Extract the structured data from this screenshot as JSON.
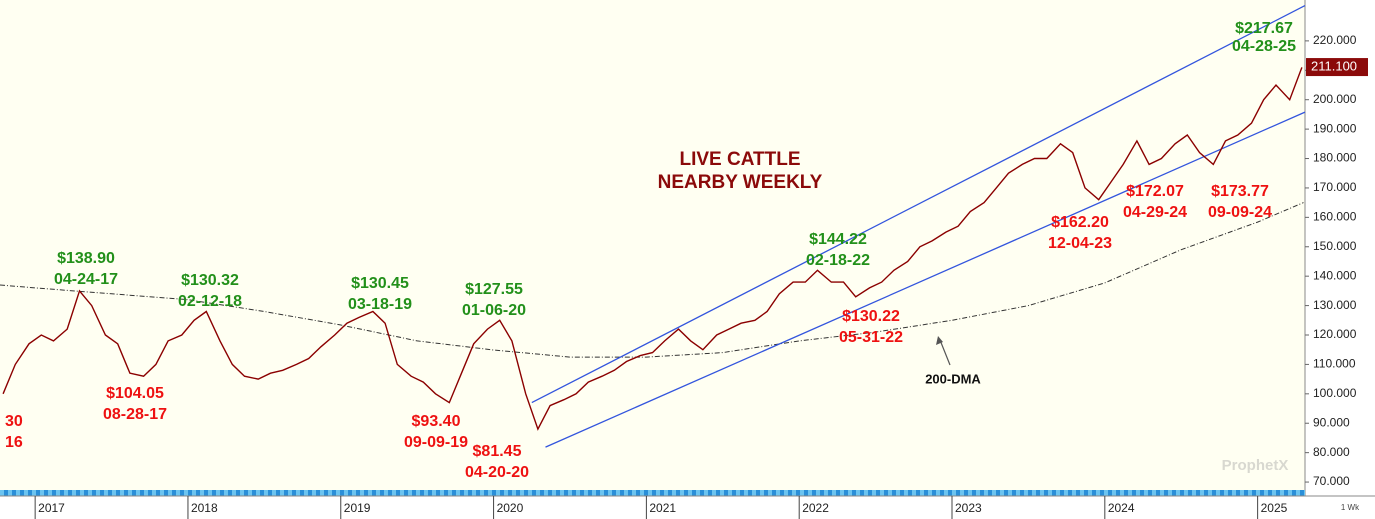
{
  "chart_data": {
    "type": "line",
    "title": "LIVE  CATTLE",
    "subtitle": "NEARBY  WEEKLY",
    "xlim": [
      2016.77,
      2025.31
    ],
    "xticks": [
      2017,
      2018,
      2019,
      2020,
      2021,
      2022,
      2023,
      2024,
      2025
    ],
    "ylim": [
      67.3,
      233.9
    ],
    "yticks": [
      {
        "value": 70,
        "label": "70.000"
      },
      {
        "value": 80,
        "label": "80.000"
      },
      {
        "value": 90,
        "label": "90.000"
      },
      {
        "value": 100,
        "label": "100.000"
      },
      {
        "value": 110,
        "label": "110.000"
      },
      {
        "value": 120,
        "label": "120.000"
      },
      {
        "value": 130,
        "label": "130.000"
      },
      {
        "value": 140,
        "label": "140.000"
      },
      {
        "value": 150,
        "label": "150.000"
      },
      {
        "value": 160,
        "label": "160.000"
      },
      {
        "value": 170,
        "label": "170.000"
      },
      {
        "value": 180,
        "label": "180.000"
      },
      {
        "value": 190,
        "label": "190.000"
      },
      {
        "value": 200,
        "label": "200.000"
      },
      {
        "value": 210,
        "label": "210.000"
      },
      {
        "value": 220,
        "label": "220.000"
      }
    ],
    "x": [
      2016.79,
      2016.87,
      2016.96,
      2017.04,
      2017.12,
      2017.21,
      2017.29,
      2017.37,
      2017.46,
      2017.54,
      2017.62,
      2017.71,
      2017.79,
      2017.87,
      2017.96,
      2018.04,
      2018.12,
      2018.21,
      2018.29,
      2018.37,
      2018.46,
      2018.54,
      2018.62,
      2018.71,
      2018.79,
      2018.87,
      2018.96,
      2019.04,
      2019.12,
      2019.21,
      2019.29,
      2019.37,
      2019.46,
      2019.54,
      2019.62,
      2019.71,
      2019.79,
      2019.87,
      2019.96,
      2020.04,
      2020.12,
      2020.21,
      2020.29,
      2020.37,
      2020.46,
      2020.54,
      2020.62,
      2020.71,
      2020.79,
      2020.87,
      2020.96,
      2021.04,
      2021.12,
      2021.21,
      2021.29,
      2021.37,
      2021.46,
      2021.54,
      2021.62,
      2021.71,
      2021.79,
      2021.87,
      2021.96,
      2022.04,
      2022.12,
      2022.21,
      2022.29,
      2022.37,
      2022.46,
      2022.54,
      2022.62,
      2022.71,
      2022.79,
      2022.87,
      2022.96,
      2023.04,
      2023.12,
      2023.21,
      2023.29,
      2023.37,
      2023.46,
      2023.54,
      2023.62,
      2023.71,
      2023.79,
      2023.87,
      2023.96,
      2024.04,
      2024.12,
      2024.21,
      2024.29,
      2024.37,
      2024.46,
      2024.54,
      2024.62,
      2024.71,
      2024.79,
      2024.87,
      2024.96,
      2025.04,
      2025.12,
      2025.21,
      2025.29
    ],
    "series": [
      {
        "name": "Live Cattle",
        "color": "#8b0000",
        "values": [
          100,
          110,
          117,
          120,
          118,
          122,
          135,
          130,
          120,
          117,
          107,
          106,
          110,
          118,
          120,
          125,
          128,
          118,
          110,
          106,
          105,
          107,
          108,
          110,
          112,
          116,
          120,
          124,
          126,
          128,
          124,
          110,
          106,
          104,
          100,
          97,
          107,
          117,
          122,
          125,
          118,
          100,
          88,
          96,
          98,
          100,
          104,
          106,
          108,
          111,
          113,
          114,
          118,
          122,
          118,
          115,
          120,
          122,
          124,
          125,
          128,
          134,
          138,
          138,
          142,
          138,
          138,
          133,
          136,
          138,
          142,
          145,
          150,
          152,
          155,
          157,
          162,
          165,
          170,
          175,
          178,
          180,
          180,
          185,
          182,
          170,
          166,
          172,
          178,
          186,
          178,
          180,
          185,
          188,
          182,
          178,
          186,
          188,
          192,
          200,
          205,
          200,
          211
        ]
      }
    ],
    "dma": {
      "label": "200-DMA",
      "color": "#333333",
      "x": [
        2016.77,
        2017.0,
        2017.5,
        2018.0,
        2018.5,
        2019.0,
        2019.5,
        2020.0,
        2020.5,
        2021.0,
        2021.5,
        2022.0,
        2022.5,
        2023.0,
        2023.5,
        2024.0,
        2024.5,
        2025.0,
        2025.3
      ],
      "values": [
        137,
        136,
        134,
        132,
        128,
        123.4,
        118,
        114.9,
        112.5,
        112.5,
        114,
        118,
        121,
        125,
        130,
        137.7,
        149,
        158.4,
        165
      ]
    },
    "channels": [
      {
        "color": "#3355dd",
        "x": [
          2020.25,
          2025.31
        ],
        "values": [
          97,
          232
        ]
      },
      {
        "color": "#3355dd",
        "x": [
          2020.34,
          2025.31
        ],
        "values": [
          81.9,
          195.8
        ]
      }
    ],
    "last_price": {
      "value": 211.1,
      "label": "211.100"
    },
    "annotations": [
      {
        "price": "$138.90",
        "date": "04-24-17",
        "color": "#22901a"
      },
      {
        "price": "$104.05",
        "date": "08-28-17",
        "color": "#ee1111"
      },
      {
        "price": "$130.32",
        "date": "02-12-18",
        "color": "#22901a"
      },
      {
        "price": "$130.45",
        "date": "03-18-19",
        "color": "#22901a"
      },
      {
        "price": "$93.40",
        "date": "09-09-19",
        "color": "#ee1111"
      },
      {
        "price": "$127.55",
        "date": "01-06-20",
        "color": "#22901a"
      },
      {
        "price": "$81.45",
        "date": "04-20-20",
        "color": "#ee1111"
      },
      {
        "price": "$144.22",
        "date": "02-18-22",
        "color": "#22901a"
      },
      {
        "price": "$130.22",
        "date": "05-31-22",
        "color": "#ee1111"
      },
      {
        "price": "$162.20",
        "date": "12-04-23",
        "color": "#ee1111"
      },
      {
        "price": "$172.07",
        "date": "04-29-24",
        "color": "#ee1111"
      },
      {
        "price": "$173.77",
        "date": "09-09-24",
        "color": "#ee1111"
      },
      {
        "price": "$217.67",
        "date": "04-28-25",
        "color": "#22901a"
      },
      {
        "price": "30",
        "date": "16",
        "color": "#ee1111"
      }
    ],
    "watermark": "ProphetX",
    "interval": "1 Wk"
  }
}
